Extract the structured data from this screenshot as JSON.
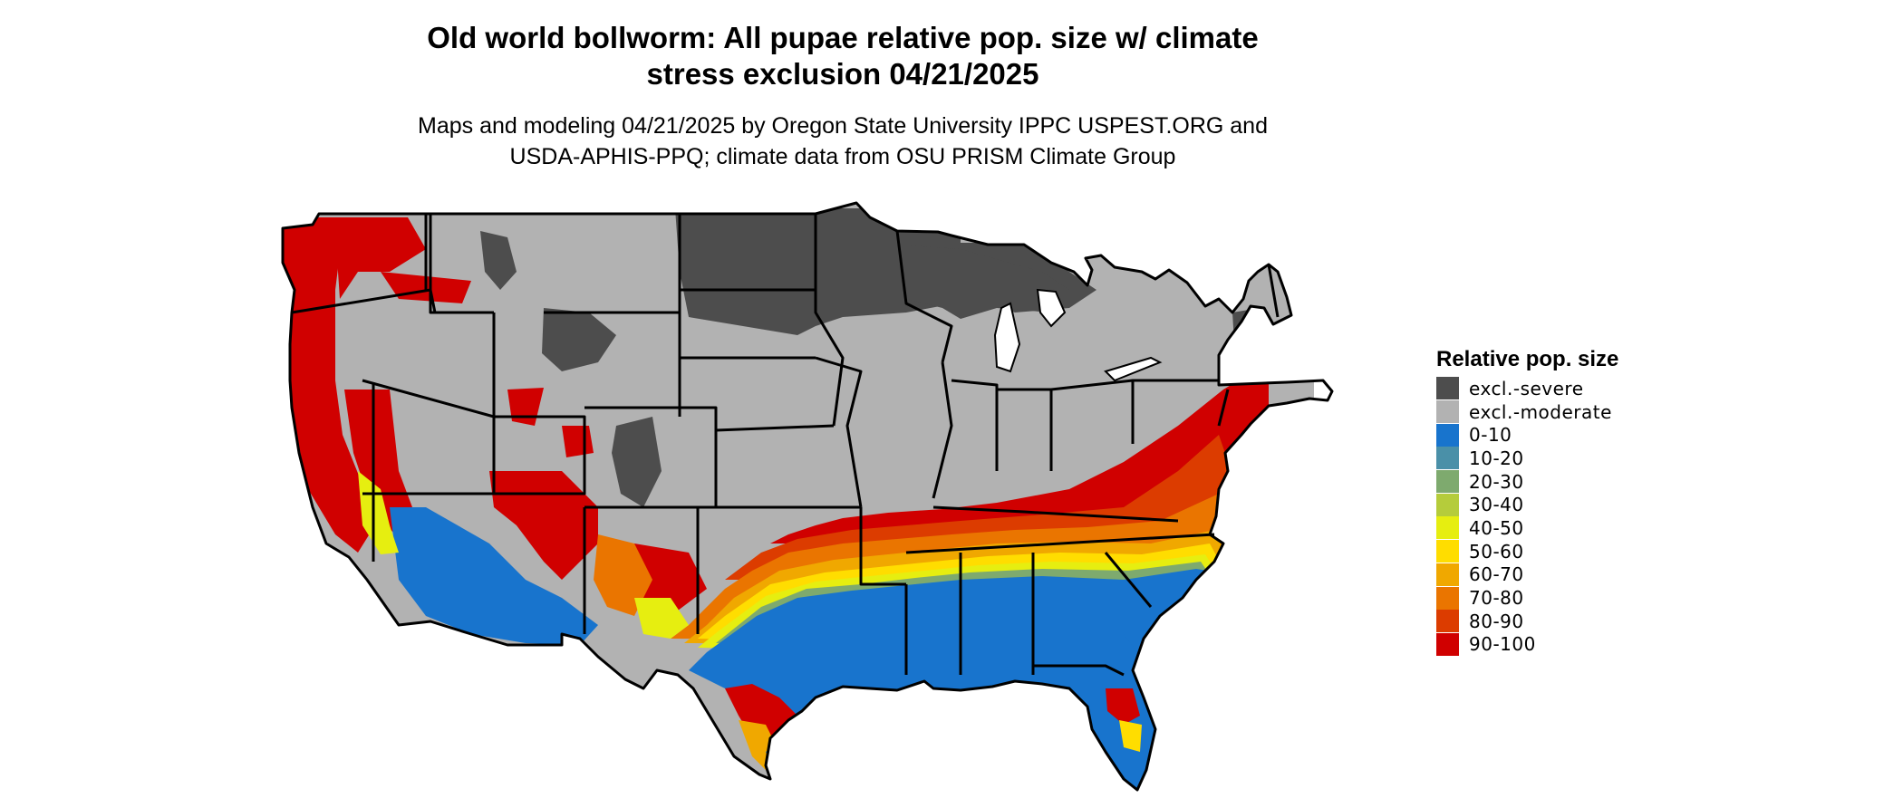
{
  "header": {
    "title_line1": "Old world bollworm: All pupae relative pop. size w/ climate",
    "title_line2": "stress exclusion 04/21/2025",
    "subtitle_line1": "Maps and modeling 04/21/2025 by Oregon State University IPPC USPEST.ORG and",
    "subtitle_line2": "USDA-APHIS-PPQ; climate data from OSU PRISM Climate Group"
  },
  "legend": {
    "title": "Relative pop. size",
    "items": [
      {
        "label": "excl.-severe",
        "color": "#4d4d4d"
      },
      {
        "label": "excl.-moderate",
        "color": "#b2b2b2"
      },
      {
        "label": "0-10",
        "color": "#1874cd"
      },
      {
        "label": "10-20",
        "color": "#4a90a8"
      },
      {
        "label": "20-30",
        "color": "#7eaa6e"
      },
      {
        "label": "30-40",
        "color": "#b5cc3b"
      },
      {
        "label": "40-50",
        "color": "#e6ee10"
      },
      {
        "label": "50-60",
        "color": "#ffdd00"
      },
      {
        "label": "60-70",
        "color": "#f0a800"
      },
      {
        "label": "70-80",
        "color": "#ea7500"
      },
      {
        "label": "80-90",
        "color": "#dc3c00"
      },
      {
        "label": "90-100",
        "color": "#d00000"
      }
    ]
  }
}
